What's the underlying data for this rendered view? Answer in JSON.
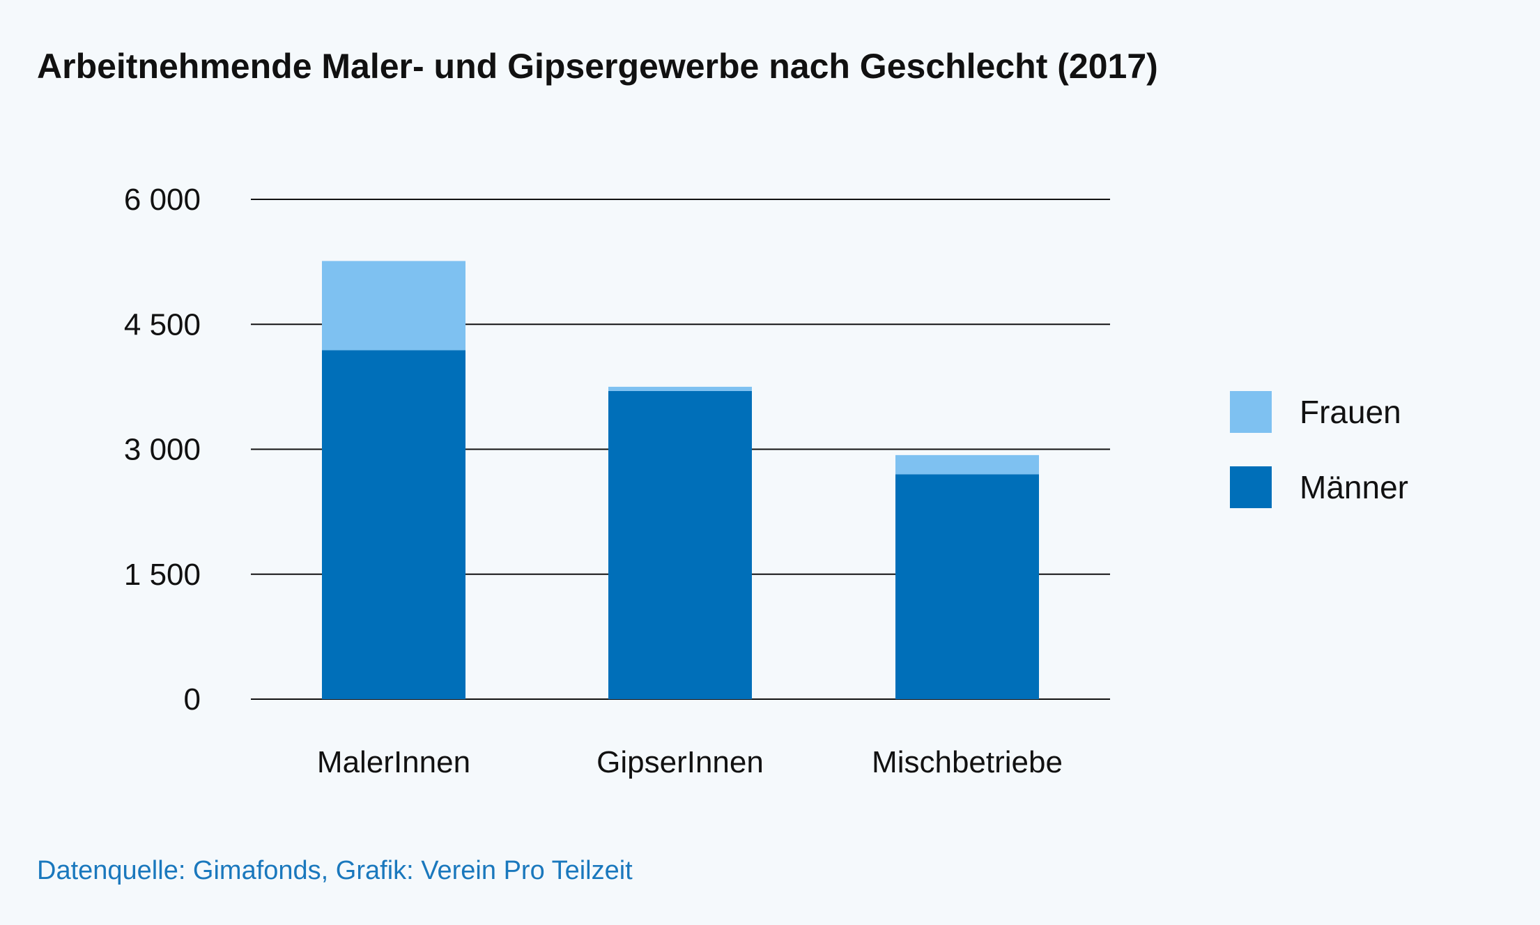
{
  "chart_data": {
    "type": "bar",
    "stacked": true,
    "title": "Arbeitnehmende Maler- und Gipsergewerbe nach Geschlecht (2017)",
    "categories": [
      "MalerInnen",
      "GipserInnen",
      "Mischbetriebe"
    ],
    "series": [
      {
        "name": "Männer",
        "color": "#006fb9",
        "values": [
          4190,
          3700,
          2700
        ]
      },
      {
        "name": "Frauen",
        "color": "#7ec1f1",
        "values": [
          1070,
          50,
          230
        ]
      }
    ],
    "y_ticks": [
      {
        "value": 0,
        "label": "0"
      },
      {
        "value": 1500,
        "label": "1 500"
      },
      {
        "value": 3000,
        "label": "3 000"
      },
      {
        "value": 4500,
        "label": "4 500"
      },
      {
        "value": 6000,
        "label": "6 000"
      }
    ],
    "ylim": [
      0,
      6000
    ],
    "xlabel": "",
    "ylabel": "",
    "grid": true,
    "legend": {
      "position": "right",
      "items": [
        {
          "label": "Frauen",
          "color": "#7ec1f1"
        },
        {
          "label": "Männer",
          "color": "#006fb9"
        }
      ]
    },
    "source": "Datenquelle: Gimafonds, Grafik: Verein Pro Teilzeit"
  }
}
